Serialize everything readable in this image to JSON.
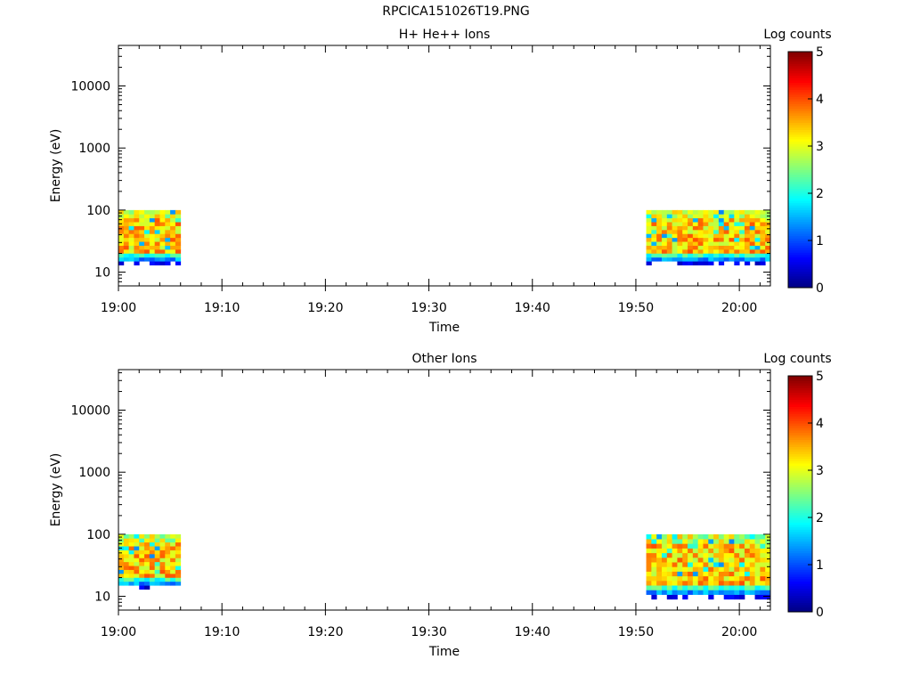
{
  "figure": {
    "title": "RPCICA151026T19.PNG"
  },
  "chart_data": [
    {
      "type": "heatmap",
      "title": "H+ He++ Ions",
      "xlabel": "Time",
      "ylabel": "Energy (eV)",
      "y_scale": "log",
      "ylim": [
        6,
        45000
      ],
      "xlim": [
        "19:00",
        "20:03"
      ],
      "x_ticks": [
        "19:00",
        "19:10",
        "19:20",
        "19:30",
        "19:40",
        "19:50",
        "20:00"
      ],
      "y_ticks": [
        "10",
        "100",
        "1000",
        "10000"
      ],
      "colorbar": {
        "label": "Log counts",
        "range": [
          0,
          5
        ],
        "ticks": [
          "0",
          "1",
          "2",
          "3",
          "4",
          "5"
        ]
      },
      "data_blocks": [
        {
          "time_start": "19:00",
          "time_end": "19:06",
          "energy_range_eV": [
            13,
            100
          ],
          "log_counts_range": [
            1,
            4
          ]
        },
        {
          "time_start": "19:51",
          "time_end": "20:03",
          "energy_range_eV": [
            13,
            100
          ],
          "log_counts_range": [
            1,
            4
          ]
        }
      ]
    },
    {
      "type": "heatmap",
      "title": "Other Ions",
      "xlabel": "Time",
      "ylabel": "Energy (eV)",
      "y_scale": "log",
      "ylim": [
        6,
        45000
      ],
      "xlim": [
        "19:00",
        "20:03"
      ],
      "x_ticks": [
        "19:00",
        "19:10",
        "19:20",
        "19:30",
        "19:40",
        "19:50",
        "20:00"
      ],
      "y_ticks": [
        "10",
        "100",
        "1000",
        "10000"
      ],
      "colorbar": {
        "label": "Log counts",
        "range": [
          0,
          5
        ],
        "ticks": [
          "0",
          "1",
          "2",
          "3",
          "4",
          "5"
        ]
      },
      "data_blocks": [
        {
          "time_start": "19:00",
          "time_end": "19:06",
          "energy_range_eV": [
            13,
            100
          ],
          "log_counts_range": [
            1,
            4
          ]
        },
        {
          "time_start": "19:51",
          "time_end": "20:03",
          "energy_range_eV": [
            9,
            100
          ],
          "log_counts_range": [
            1,
            4
          ]
        }
      ]
    }
  ]
}
